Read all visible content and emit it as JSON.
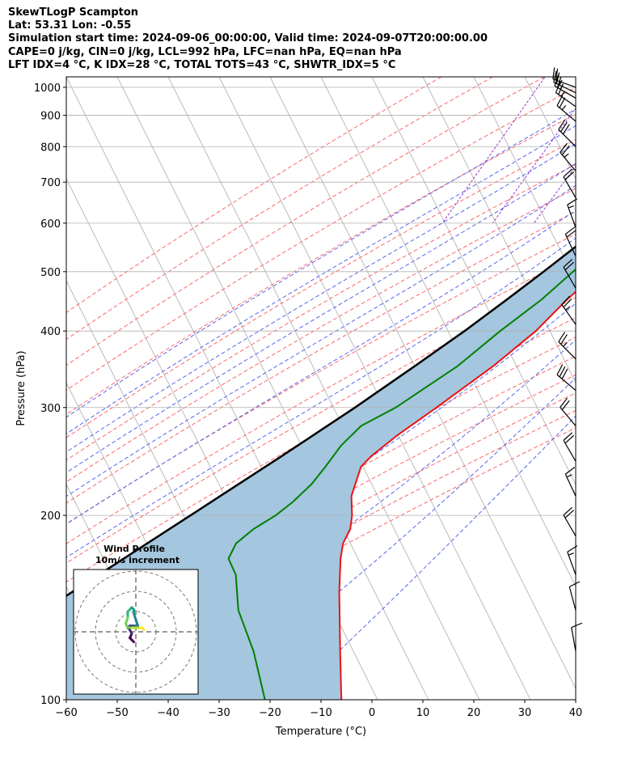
{
  "title": {
    "line1": "SkewTLogP Scampton",
    "line2": "Lat: 53.31   Lon: -0.55",
    "line3": "Simulation start time: 2024-09-06_00:00:00, Valid time: 2024-09-07T20:00:00.00",
    "line4": "CAPE=0 j/kg, CIN=0 j/kg, LCL=992 hPa, LFC=nan hPa, EQ=nan hPa",
    "line5": "LFT IDX=4 °C, K IDX=28 °C, TOTAL TOTS=43 °C, SHWTR_IDX=5 °C"
  },
  "chart_data": {
    "type": "line",
    "title": "SkewTLogP Scampton",
    "xlabel": "Temperature (°C)",
    "ylabel": "Pressure (hPa)",
    "xlim": [
      -60,
      40
    ],
    "ylim": [
      1040,
      100
    ],
    "x_ticks": [
      -60,
      -50,
      -40,
      -30,
      -20,
      -10,
      0,
      10,
      20,
      30,
      40
    ],
    "x_tick_labels": [
      "−60",
      "−50",
      "−40",
      "−30",
      "−20",
      "−10",
      "0",
      "10",
      "20",
      "30",
      "40"
    ],
    "y_ticks": [
      1000,
      900,
      800,
      700,
      600,
      500,
      400,
      300,
      200,
      100
    ],
    "y_tick_labels": [
      "1000",
      "900",
      "800",
      "700",
      "600",
      "500",
      "400",
      "300",
      "200",
      "100"
    ],
    "grid": true,
    "series": [
      {
        "name": "Temperature",
        "color": "#ee1111",
        "points": [
          [
            1000,
            17
          ],
          [
            985,
            19
          ],
          [
            960,
            20
          ],
          [
            900,
            20
          ],
          [
            840,
            19.5
          ],
          [
            800,
            18
          ],
          [
            750,
            15
          ],
          [
            700,
            13
          ],
          [
            650,
            11
          ],
          [
            600,
            8
          ],
          [
            550,
            6
          ],
          [
            500,
            2.5
          ],
          [
            450,
            -1
          ],
          [
            400,
            -4
          ],
          [
            350,
            -9
          ],
          [
            300,
            -16
          ],
          [
            270,
            -21
          ],
          [
            250,
            -24
          ],
          [
            240,
            -25
          ],
          [
            215,
            -24
          ],
          [
            200,
            -22
          ],
          [
            190,
            -21
          ],
          [
            180,
            -21
          ],
          [
            170,
            -20
          ],
          [
            150,
            -17
          ],
          [
            120,
            -11
          ],
          [
            100,
            -6
          ]
        ]
      },
      {
        "name": "Dewpoint",
        "color": "#008000",
        "points": [
          [
            1000,
            16.5
          ],
          [
            970,
            17
          ],
          [
            950,
            17
          ],
          [
            920,
            14
          ],
          [
            880,
            10
          ],
          [
            840,
            8.5
          ],
          [
            810,
            9
          ],
          [
            780,
            10
          ],
          [
            740,
            10.5
          ],
          [
            700,
            10
          ],
          [
            650,
            8
          ],
          [
            600,
            4
          ],
          [
            550,
            1
          ],
          [
            500,
            -2.5
          ],
          [
            450,
            -6
          ],
          [
            400,
            -11
          ],
          [
            350,
            -16
          ],
          [
            300,
            -24
          ],
          [
            280,
            -29
          ],
          [
            260,
            -31
          ],
          [
            240,
            -32
          ],
          [
            225,
            -33
          ],
          [
            210,
            -35
          ],
          [
            200,
            -37
          ],
          [
            190,
            -40
          ],
          [
            180,
            -42
          ],
          [
            170,
            -42
          ],
          [
            160,
            -39
          ],
          [
            140,
            -35
          ],
          [
            120,
            -28
          ],
          [
            100,
            -21
          ]
        ]
      },
      {
        "name": "Parcel",
        "color": "#000000",
        "points": [
          [
            1000,
            16.5
          ],
          [
            992,
            16.2
          ],
          [
            950,
            14.8
          ],
          [
            900,
            13.2
          ],
          [
            850,
            11.3
          ],
          [
            800,
            9.3
          ],
          [
            750,
            7.1
          ],
          [
            700,
            4.7
          ],
          [
            650,
            2.0
          ],
          [
            600,
            -1.0
          ],
          [
            550,
            -4.4
          ],
          [
            500,
            -8.3
          ],
          [
            450,
            -12.8
          ],
          [
            400,
            -18.0
          ],
          [
            350,
            -24.4
          ],
          [
            300,
            -32.0
          ],
          [
            250,
            -41.6
          ],
          [
            200,
            -53.7
          ],
          [
            150,
            -69.4
          ],
          [
            120,
            -81.5
          ],
          [
            100,
            -91.0
          ]
        ]
      }
    ],
    "shading": {
      "name": "Parcel-Temperature area",
      "color": "#a4c6df"
    },
    "background_lines": [
      {
        "name": "Isotherms",
        "color": "#aaaaaa"
      },
      {
        "name": "Dry adiabats",
        "color": "#ff6666"
      },
      {
        "name": "Moist adiabats",
        "color": "#5566ee"
      },
      {
        "name": "Mixing ratio lines",
        "color": "#9933cc"
      }
    ],
    "wind_barbs": [
      {
        "pressure": 1000,
        "speed_kt": 20,
        "dir": 290
      },
      {
        "pressure": 980,
        "speed_kt": 25,
        "dir": 295
      },
      {
        "pressure": 960,
        "speed_kt": 25,
        "dir": 300
      },
      {
        "pressure": 930,
        "speed_kt": 25,
        "dir": 305
      },
      {
        "pressure": 880,
        "speed_kt": 25,
        "dir": 310
      },
      {
        "pressure": 800,
        "speed_kt": 30,
        "dir": 315
      },
      {
        "pressure": 730,
        "speed_kt": 25,
        "dir": 320
      },
      {
        "pressure": 660,
        "speed_kt": 20,
        "dir": 330
      },
      {
        "pressure": 590,
        "speed_kt": 15,
        "dir": 340
      },
      {
        "pressure": 530,
        "speed_kt": 20,
        "dir": 335
      },
      {
        "pressure": 470,
        "speed_kt": 20,
        "dir": 330
      },
      {
        "pressure": 410,
        "speed_kt": 25,
        "dir": 325
      },
      {
        "pressure": 360,
        "speed_kt": 25,
        "dir": 315
      },
      {
        "pressure": 320,
        "speed_kt": 30,
        "dir": 310
      },
      {
        "pressure": 280,
        "speed_kt": 20,
        "dir": 320
      },
      {
        "pressure": 245,
        "speed_kt": 20,
        "dir": 330
      },
      {
        "pressure": 215,
        "speed_kt": 15,
        "dir": 335
      },
      {
        "pressure": 185,
        "speed_kt": 20,
        "dir": 330
      },
      {
        "pressure": 160,
        "speed_kt": 15,
        "dir": 340
      },
      {
        "pressure": 140,
        "speed_kt": 10,
        "dir": 345
      },
      {
        "pressure": 120,
        "speed_kt": 10,
        "dir": 350
      }
    ],
    "inset": {
      "title1": "Wind Profile",
      "title2": "10m/s increment",
      "rings": [
        10,
        20,
        30
      ],
      "hodograph": [
        [
          -1,
          -5
        ],
        [
          -2,
          -4
        ],
        [
          -3,
          -3
        ],
        [
          -2,
          -1
        ],
        [
          -3,
          1
        ],
        [
          -4,
          2
        ],
        [
          -3,
          3
        ],
        [
          -2,
          3
        ],
        [
          -1,
          3
        ],
        [
          0,
          3
        ],
        [
          1,
          3
        ],
        [
          0,
          6
        ],
        [
          -1,
          9
        ],
        [
          -1,
          11
        ],
        [
          -2,
          12
        ],
        [
          -3,
          11
        ],
        [
          -4,
          10
        ],
        [
          -4,
          7
        ],
        [
          -5,
          4
        ],
        [
          -4,
          2
        ],
        [
          -2,
          2
        ],
        [
          0,
          2
        ],
        [
          2,
          2
        ],
        [
          3,
          2
        ],
        [
          4,
          1
        ]
      ]
    }
  }
}
